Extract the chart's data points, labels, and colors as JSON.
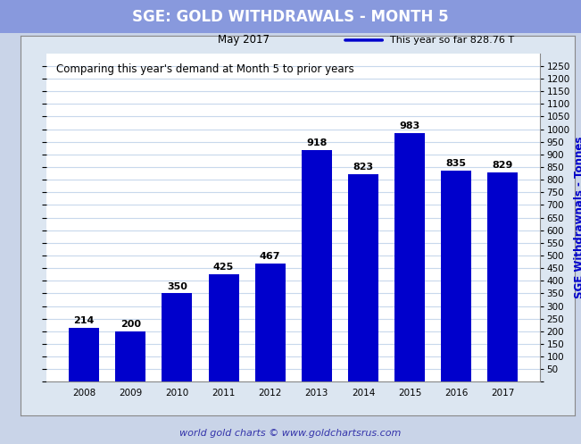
{
  "title": "SGE: GOLD WITHDRAWALS - MONTH 5",
  "title_bg_color": "#8899dd",
  "title_text_color": "white",
  "subtitle": "Comparing this year's demand at Month 5 to prior years",
  "annotation_left": "May 2017",
  "annotation_right": "This year so far 828.76 T",
  "footer": "world gold charts © www.goldchartsrus.com",
  "ylabel_right": "SGE Withdrawnals - Tonnes",
  "categories": [
    "2008",
    "2009",
    "2010",
    "2011",
    "2012",
    "2013",
    "2014",
    "2015",
    "2016",
    "2017"
  ],
  "values": [
    214,
    200,
    350,
    425,
    467,
    918,
    823,
    983,
    835,
    829
  ],
  "bar_color": "#0000cc",
  "outer_bg_color": "#c9d4e8",
  "inner_bg_color": "#dce6f1",
  "plot_bg_color": "white",
  "ylim": [
    0,
    1300
  ],
  "yticks": [
    0,
    50,
    100,
    150,
    200,
    250,
    300,
    350,
    400,
    450,
    500,
    550,
    600,
    650,
    700,
    750,
    800,
    850,
    900,
    950,
    1000,
    1050,
    1100,
    1150,
    1200,
    1250
  ],
  "grid_color": "#c8d8ec",
  "legend_line_color": "#0000cc",
  "tick_label_fontsize": 7.5,
  "bar_label_fontsize": 8,
  "title_fontsize": 12,
  "subtitle_fontsize": 8.5,
  "footer_fontsize": 8,
  "ylabel_fontsize": 8.5,
  "footer_color": "#3333aa"
}
